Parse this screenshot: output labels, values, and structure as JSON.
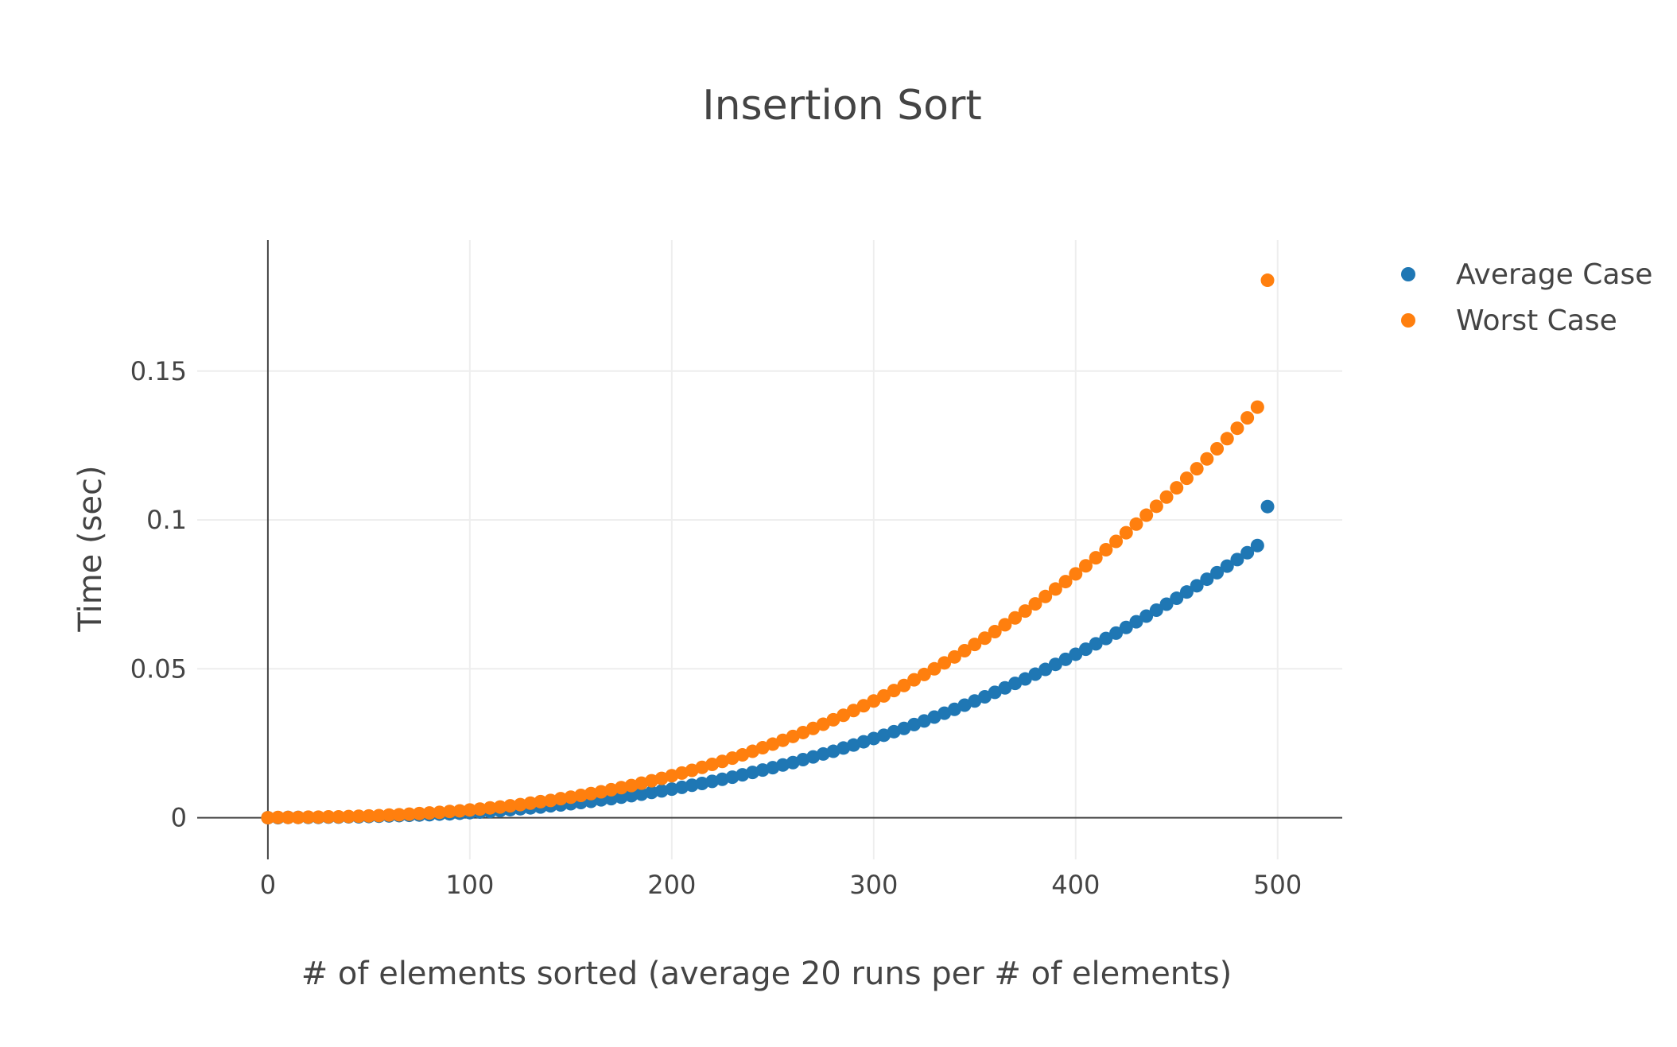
{
  "chart_data": {
    "type": "scatter",
    "title": "Insertion Sort",
    "xlabel": "# of elements sorted (average 20 runs per # of elements)",
    "ylabel": "Time (sec)",
    "xlim": [
      -35,
      532
    ],
    "ylim": [
      -0.014,
      0.194
    ],
    "x_ticks": [
      0,
      100,
      200,
      300,
      400,
      500
    ],
    "x_tick_labels": [
      "0",
      "100",
      "200",
      "300",
      "400",
      "500"
    ],
    "y_ticks": [
      0,
      0.05,
      0.1,
      0.15
    ],
    "y_tick_labels": [
      "0",
      "0.05",
      "0.1",
      "0.15"
    ],
    "grid": true,
    "legend_position": "top-right",
    "x": [
      0,
      5,
      10,
      15,
      20,
      25,
      30,
      35,
      40,
      45,
      50,
      55,
      60,
      65,
      70,
      75,
      80,
      85,
      90,
      95,
      100,
      105,
      110,
      115,
      120,
      125,
      130,
      135,
      140,
      145,
      150,
      155,
      160,
      165,
      170,
      175,
      180,
      185,
      190,
      195,
      200,
      205,
      210,
      215,
      220,
      225,
      230,
      235,
      240,
      245,
      250,
      255,
      260,
      265,
      270,
      275,
      280,
      285,
      290,
      295,
      300,
      305,
      310,
      315,
      320,
      325,
      330,
      335,
      340,
      345,
      350,
      355,
      360,
      365,
      370,
      375,
      380,
      385,
      390,
      395,
      400,
      405,
      410,
      415,
      420,
      425,
      430,
      435,
      440,
      445,
      450,
      455,
      460,
      465,
      470,
      475,
      480,
      485,
      490,
      495
    ],
    "series": [
      {
        "name": "Average Case",
        "color": "#1f77b4",
        "values": [
          0.0,
          0.0,
          0.0001,
          0.0001,
          0.0001,
          0.0001,
          0.0002,
          0.0002,
          0.0003,
          0.0003,
          0.0004,
          0.0005,
          0.0006,
          0.0007,
          0.0008,
          0.0009,
          0.001,
          0.0012,
          0.0013,
          0.0015,
          0.0017,
          0.0019,
          0.0021,
          0.0024,
          0.0027,
          0.003,
          0.0033,
          0.0036,
          0.004,
          0.0043,
          0.0047,
          0.0051,
          0.0055,
          0.006,
          0.0064,
          0.0069,
          0.0074,
          0.0079,
          0.0085,
          0.009,
          0.0096,
          0.0102,
          0.0109,
          0.0115,
          0.0122,
          0.0129,
          0.0136,
          0.0144,
          0.0152,
          0.016,
          0.0168,
          0.0177,
          0.0185,
          0.0195,
          0.0204,
          0.0214,
          0.0223,
          0.0234,
          0.0244,
          0.0255,
          0.0266,
          0.0277,
          0.0289,
          0.03,
          0.0313,
          0.0325,
          0.0338,
          0.0351,
          0.0364,
          0.0378,
          0.0392,
          0.0406,
          0.0421,
          0.0436,
          0.0451,
          0.0466,
          0.0482,
          0.0498,
          0.0515,
          0.0532,
          0.0549,
          0.0566,
          0.0584,
          0.0602,
          0.062,
          0.0639,
          0.0658,
          0.0677,
          0.0697,
          0.0717,
          0.0737,
          0.0758,
          0.0779,
          0.0801,
          0.0823,
          0.0845,
          0.0867,
          0.089,
          0.0914,
          0.1045
        ]
      },
      {
        "name": "Worst Case",
        "color": "#ff7f0e",
        "values": [
          0.0,
          0.0001,
          0.0001,
          0.0001,
          0.0002,
          0.0002,
          0.0003,
          0.0003,
          0.0004,
          0.0005,
          0.0006,
          0.0007,
          0.0009,
          0.001,
          0.0012,
          0.0014,
          0.0016,
          0.0018,
          0.0021,
          0.0023,
          0.0026,
          0.0029,
          0.0033,
          0.0036,
          0.004,
          0.0044,
          0.0049,
          0.0054,
          0.0058,
          0.0064,
          0.0069,
          0.0075,
          0.0081,
          0.0087,
          0.0094,
          0.0101,
          0.0108,
          0.0116,
          0.0124,
          0.0132,
          0.0141,
          0.015,
          0.0159,
          0.0169,
          0.0179,
          0.0189,
          0.02,
          0.0211,
          0.0223,
          0.0235,
          0.0247,
          0.026,
          0.0273,
          0.0286,
          0.03,
          0.0314,
          0.0329,
          0.0344,
          0.036,
          0.0376,
          0.0392,
          0.0409,
          0.0427,
          0.0444,
          0.0463,
          0.0481,
          0.05,
          0.052,
          0.054,
          0.0561,
          0.0582,
          0.0603,
          0.0625,
          0.0648,
          0.0671,
          0.0694,
          0.0718,
          0.0743,
          0.0768,
          0.0793,
          0.0819,
          0.0846,
          0.0873,
          0.09,
          0.0928,
          0.0957,
          0.0986,
          0.1016,
          0.1046,
          0.1077,
          0.1108,
          0.114,
          0.1172,
          0.1205,
          0.1239,
          0.1273,
          0.1308,
          0.1343,
          0.1379,
          0.1805
        ]
      }
    ]
  }
}
